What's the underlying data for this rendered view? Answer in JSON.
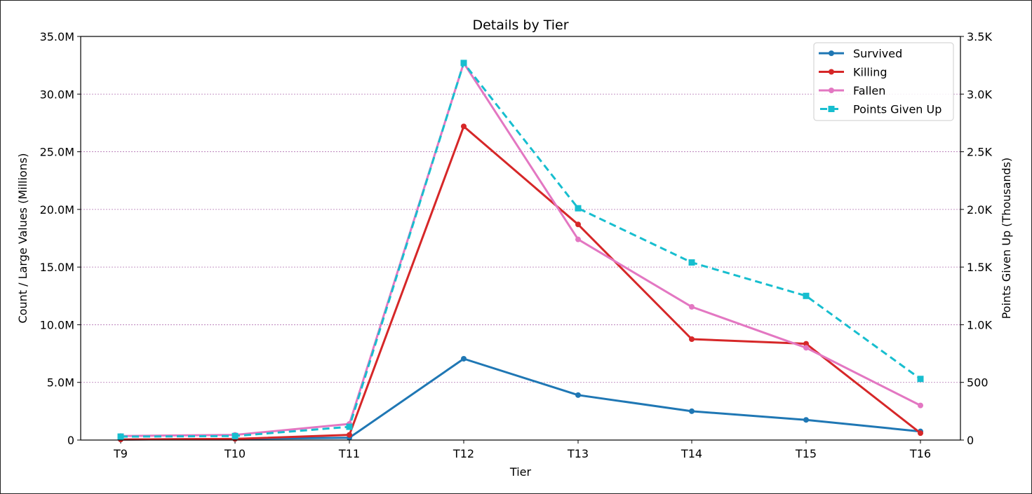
{
  "chart_data": {
    "type": "line",
    "title": "Details by Tier",
    "xlabel": "Tier",
    "ylabel": "Count / Large Values (Millions)",
    "ylabel_right": "Points Given Up (Thousands)",
    "categories": [
      "T9",
      "T10",
      "T11",
      "T12",
      "T13",
      "T14",
      "T15",
      "T16"
    ],
    "ylim": [
      0,
      35
    ],
    "ylim_right": [
      0,
      3.5
    ],
    "yticks": [
      "0",
      "5.0M",
      "10.0M",
      "15.0M",
      "20.0M",
      "25.0M",
      "30.0M",
      "35.0M"
    ],
    "yticks_right": [
      "0",
      "500",
      "1.0K",
      "1.5K",
      "2.0K",
      "2.5K",
      "3.0K",
      "3.5K"
    ],
    "grid": "horizontal dashed",
    "legend_position": "upper right",
    "series": [
      {
        "name": "Survived",
        "axis": "left",
        "color": "#1f77b4",
        "style": "solid",
        "marker": "circle",
        "values": [
          0.05,
          0.1,
          0.2,
          7.05,
          3.9,
          2.5,
          1.75,
          0.75
        ]
      },
      {
        "name": "Killing",
        "axis": "left",
        "color": "#d62728",
        "style": "solid",
        "marker": "circle",
        "values": [
          0.05,
          0.1,
          0.45,
          27.2,
          18.7,
          8.75,
          8.35,
          0.6
        ]
      },
      {
        "name": "Fallen",
        "axis": "left",
        "color": "#e377c2",
        "style": "solid",
        "marker": "circle",
        "values": [
          0.35,
          0.45,
          1.4,
          32.7,
          17.4,
          11.55,
          8.0,
          3.0
        ]
      },
      {
        "name": "Points Given Up",
        "axis": "right",
        "color": "#17becf",
        "style": "dashed",
        "marker": "square",
        "values": [
          0.03,
          0.035,
          0.115,
          3.27,
          2.01,
          1.54,
          1.25,
          0.53
        ]
      }
    ]
  }
}
